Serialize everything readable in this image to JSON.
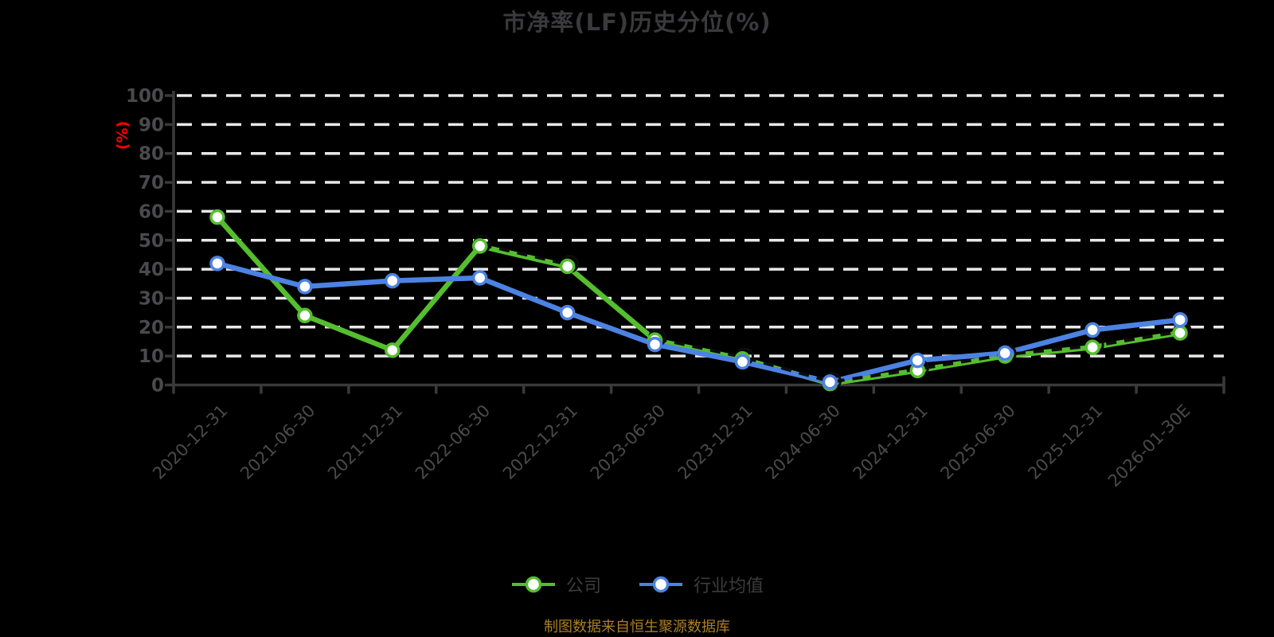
{
  "title": "市净率(LF)历史分位(%)",
  "y_axis_unit_label": "(%)",
  "footer_note": "制图数据来自恒生聚源数据库",
  "legend": [
    {
      "label": "公司",
      "color": "#55BE2F"
    },
    {
      "label": "行业均值",
      "color": "#4C82E2"
    }
  ],
  "colors": {
    "background": "#000000",
    "title": "#3A3A3C",
    "axis": "#3A3A3A",
    "tick_label": "#4A4A4C",
    "grid": "#E8E8E8",
    "company_line": "#55BE2F",
    "industry_line": "#4C82E2",
    "marker_fill": "#FFFFFF",
    "dashed_overlay": "#0D0D0D",
    "unit_label": "#FF0000",
    "legend_text": "#3C3C3E",
    "footer_text": "#AD7E28"
  },
  "chart_data": {
    "type": "line",
    "title": "市净率(LF)历史分位(%)",
    "ylabel": "(%)",
    "ylim": [
      0,
      100
    ],
    "y_ticks": [
      0,
      10,
      20,
      30,
      40,
      50,
      60,
      70,
      80,
      90,
      100
    ],
    "grid": "horizontal-dashed-white",
    "legend_position": "bottom",
    "categories": [
      "2020-12-31",
      "2021-06-30",
      "2021-12-31",
      "2022-06-30",
      "2022-12-31",
      "2023-06-30",
      "2023-12-31",
      "2024-06-30",
      "2024-12-31",
      "2025-06-30",
      "2025-12-31",
      "2026-01-30E"
    ],
    "series": [
      {
        "name": "公司",
        "color": "#55BE2F",
        "values": [
          58,
          24,
          12,
          48,
          41,
          15.5,
          9,
          0.5,
          5,
          10,
          13,
          18
        ]
      },
      {
        "name": "行业均值",
        "color": "#4C82E2",
        "values": [
          42,
          34,
          36,
          37,
          25,
          14,
          8,
          1,
          8.5,
          11,
          19,
          22.5
        ]
      }
    ]
  }
}
